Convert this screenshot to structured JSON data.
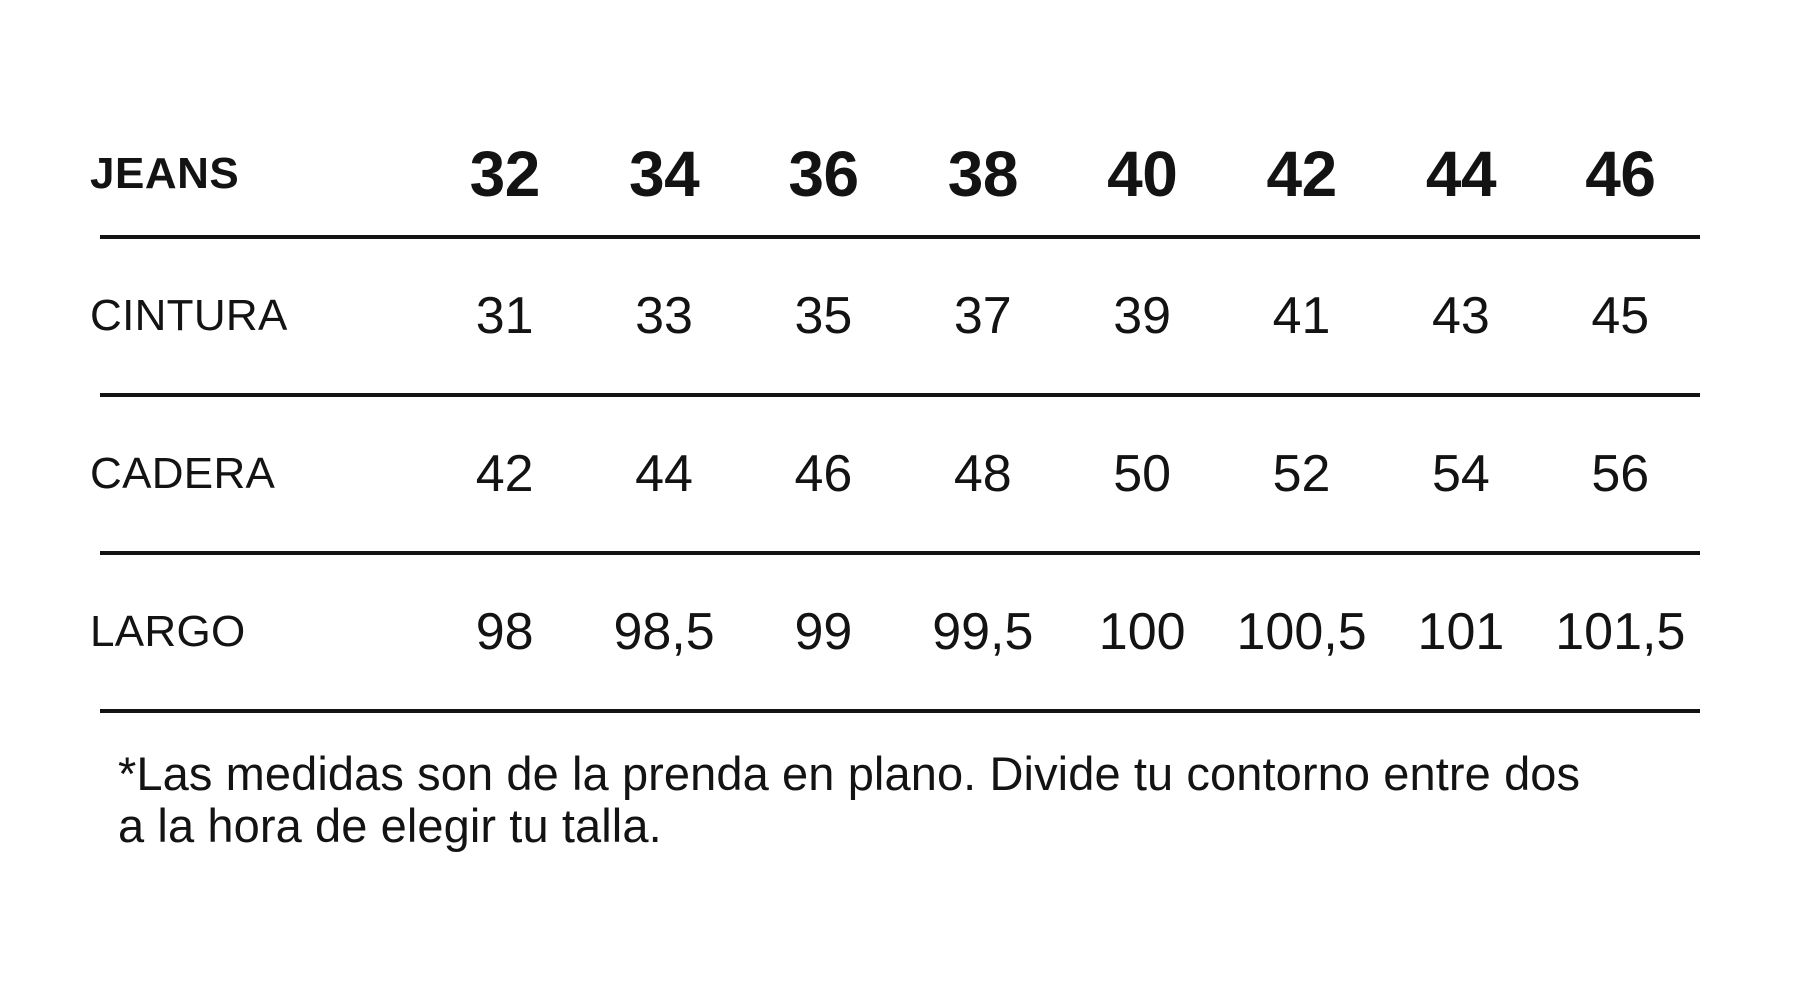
{
  "colors": {
    "background": "#ffffff",
    "text": "#131313",
    "rule": "#131313"
  },
  "table": {
    "header_label": "JEANS",
    "sizes": [
      "32",
      "34",
      "36",
      "38",
      "40",
      "42",
      "44",
      "46"
    ],
    "rows": [
      {
        "label": "CINTURA",
        "values": [
          "31",
          "33",
          "35",
          "37",
          "39",
          "41",
          "43",
          "45"
        ]
      },
      {
        "label": "CADERA",
        "values": [
          "42",
          "44",
          "46",
          "48",
          "50",
          "52",
          "54",
          "56"
        ]
      },
      {
        "label": "LARGO",
        "values": [
          "98",
          "98,5",
          "99",
          "99,5",
          "100",
          "100,5",
          "101",
          "101,5"
        ]
      }
    ]
  },
  "footnote": {
    "line1": "*Las medidas son de la prenda en plano. Divide tu contorno entre dos",
    "line2": "a la hora de elegir tu talla."
  },
  "chart_data": {
    "type": "table",
    "title": "JEANS",
    "categories": [
      "32",
      "34",
      "36",
      "38",
      "40",
      "42",
      "44",
      "46"
    ],
    "series": [
      {
        "name": "CINTURA",
        "values": [
          31,
          33,
          35,
          37,
          39,
          41,
          43,
          45
        ]
      },
      {
        "name": "CADERA",
        "values": [
          42,
          44,
          46,
          48,
          50,
          52,
          54,
          56
        ]
      },
      {
        "name": "LARGO",
        "values": [
          98,
          98.5,
          99,
          99.5,
          100,
          100.5,
          101,
          101.5
        ]
      }
    ],
    "annotations": [
      "*Las medidas son de la prenda en plano. Divide tu contorno entre dos a la hora de elegir tu talla."
    ]
  }
}
